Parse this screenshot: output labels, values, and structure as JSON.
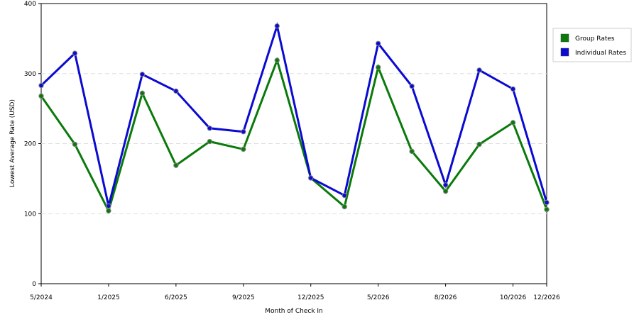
{
  "chart_data": {
    "type": "line",
    "x_label": "Month of Check In",
    "y_label": "Lowest Average Rate (USD)",
    "categories": [
      "5/2024",
      null,
      "1/2025",
      null,
      "6/2025",
      null,
      "9/2025",
      null,
      "12/2025",
      null,
      "5/2026",
      null,
      "8/2026",
      null,
      "10/2026",
      "12/2026"
    ],
    "series": [
      {
        "name": "Group Rates",
        "color": "#0a7a0a",
        "values": [
          268,
          199,
          104,
          272,
          169,
          203,
          192,
          319,
          151,
          110,
          309,
          189,
          132,
          199,
          230,
          106
        ]
      },
      {
        "name": "Individual Rates",
        "color": "#0a0ad2",
        "values": [
          283,
          329,
          111,
          299,
          275,
          222,
          217,
          368,
          151,
          126,
          343,
          282,
          141,
          305,
          278,
          116
        ]
      }
    ],
    "ylim": [
      0,
      400
    ],
    "yticks": [
      0,
      100,
      200,
      300,
      400
    ],
    "grid": true,
    "legend": "right"
  }
}
